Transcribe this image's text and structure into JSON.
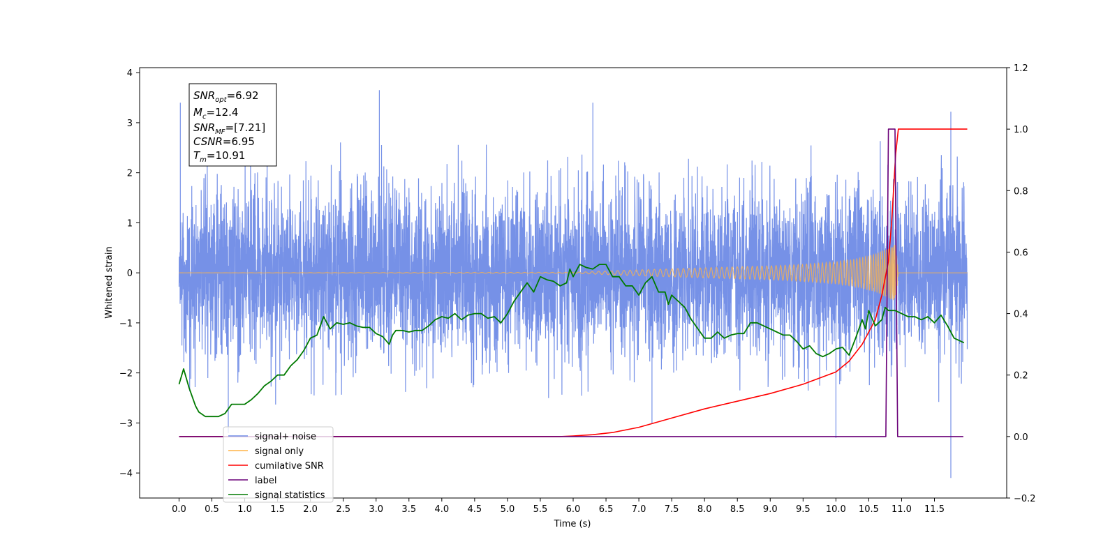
{
  "chart_data": {
    "type": "line",
    "xlabel": "Time (s)",
    "ylabel": "Whitened strain",
    "xlim": [
      -0.6,
      12.6
    ],
    "ylim": [
      -4.5,
      4.1
    ],
    "y2lim": [
      -0.2,
      1.2
    ],
    "x_ticks": [
      "0.0",
      "0.5",
      "1.0",
      "1.5",
      "2.0",
      "2.5",
      "3.0",
      "3.5",
      "4.0",
      "4.5",
      "5.0",
      "5.5",
      "6.0",
      "6.5",
      "7.0",
      "7.5",
      "8.0",
      "8.5",
      "9.0",
      "9.5",
      "10.0",
      "10.5",
      "11.0",
      "11.5"
    ],
    "y_ticks": [
      "4",
      "3",
      "2",
      "1",
      "0",
      "−1",
      "−2",
      "−3",
      "−4"
    ],
    "y2_ticks": [
      "1.2",
      "1.0",
      "0.8",
      "0.6",
      "0.4",
      "0.2",
      "0.0",
      "−0.2"
    ],
    "info_box": {
      "snr_opt": "=6.92",
      "mc": "=12.4",
      "snr_mf": "=[7.21]",
      "csnr": "=6.95",
      "tm": "=10.91"
    },
    "legend": {
      "placement": "lower-left",
      "entries": [
        {
          "label": "signal+ noise",
          "color": "#6F8BE6"
        },
        {
          "label": "signal only",
          "color": "#FFB347"
        },
        {
          "label": "cumilative SNR",
          "color": "#FF0000"
        },
        {
          "label": "label",
          "color": "#6A0078"
        },
        {
          "label": "signal statistics",
          "color": "#007A00"
        }
      ]
    },
    "series": [
      {
        "name": "signal+ noise",
        "axis": "left",
        "color": "#6F8BE6",
        "t_range": [
          0,
          12
        ],
        "envelope_pos_typical": 1.9,
        "envelope_neg_typical": -2.4,
        "notable_peaks": [
          [
            0.02,
            3.4
          ],
          [
            3.05,
            3.65
          ],
          [
            6.3,
            3.4
          ],
          [
            11.75,
            3.22
          ],
          [
            11.75,
            -4.1
          ],
          [
            10.0,
            -3.3
          ],
          [
            7.2,
            -3.0
          ],
          [
            0.75,
            -3.2
          ]
        ]
      },
      {
        "name": "signal only",
        "axis": "left",
        "color": "#FFB347",
        "note": "chirp",
        "x": [
          0,
          6.0,
          7.0,
          8.0,
          9.0,
          9.5,
          10.0,
          10.3,
          10.6,
          10.8,
          10.91,
          10.95
        ],
        "amplitude": [
          0.0,
          0.01,
          0.06,
          0.1,
          0.14,
          0.17,
          0.22,
          0.28,
          0.38,
          0.5,
          0.58,
          0.0
        ]
      },
      {
        "name": "cumilative SNR",
        "axis": "right",
        "color": "#FF0000",
        "x": [
          0,
          5.8,
          6.0,
          6.3,
          6.6,
          7.0,
          7.5,
          8.0,
          8.5,
          9.0,
          9.5,
          10.0,
          10.2,
          10.4,
          10.6,
          10.7,
          10.8,
          10.85,
          10.91,
          10.95,
          12.0
        ],
        "y": [
          0.0,
          0.0,
          0.002,
          0.006,
          0.013,
          0.03,
          0.06,
          0.09,
          0.115,
          0.14,
          0.17,
          0.21,
          0.245,
          0.3,
          0.38,
          0.46,
          0.57,
          0.7,
          0.92,
          1.0,
          1.0
        ]
      },
      {
        "name": "label",
        "axis": "right",
        "color": "#6A0078",
        "x": [
          0,
          10.76,
          10.8,
          10.9,
          10.94,
          11.94
        ],
        "y": [
          0,
          0,
          1,
          1,
          0,
          0
        ]
      },
      {
        "name": "signal statistics",
        "axis": "right",
        "color": "#007A00",
        "x": [
          0.0,
          0.07,
          0.15,
          0.25,
          0.3,
          0.4,
          0.5,
          0.6,
          0.7,
          0.8,
          0.9,
          1.0,
          1.1,
          1.2,
          1.3,
          1.4,
          1.5,
          1.6,
          1.7,
          1.8,
          1.9,
          2.0,
          2.1,
          2.2,
          2.3,
          2.4,
          2.5,
          2.6,
          2.7,
          2.8,
          2.9,
          3.0,
          3.1,
          3.2,
          3.25,
          3.3,
          3.4,
          3.5,
          3.6,
          3.7,
          3.8,
          3.9,
          4.0,
          4.1,
          4.2,
          4.3,
          4.4,
          4.5,
          4.6,
          4.7,
          4.8,
          4.9,
          5.0,
          5.1,
          5.2,
          5.3,
          5.4,
          5.5,
          5.6,
          5.7,
          5.8,
          5.9,
          5.95,
          6.0,
          6.1,
          6.2,
          6.3,
          6.4,
          6.5,
          6.6,
          6.7,
          6.8,
          6.9,
          7.0,
          7.1,
          7.2,
          7.3,
          7.4,
          7.45,
          7.5,
          7.6,
          7.7,
          7.8,
          7.9,
          8.0,
          8.1,
          8.2,
          8.3,
          8.4,
          8.5,
          8.6,
          8.7,
          8.8,
          8.9,
          9.0,
          9.1,
          9.2,
          9.3,
          9.4,
          9.5,
          9.6,
          9.7,
          9.8,
          9.9,
          10.0,
          10.1,
          10.2,
          10.3,
          10.4,
          10.45,
          10.5,
          10.6,
          10.7,
          10.75,
          10.8,
          10.9,
          11.0,
          11.1,
          11.2,
          11.3,
          11.4,
          11.5,
          11.6,
          11.7,
          11.8,
          11.9,
          11.95
        ],
        "y": [
          0.17,
          0.22,
          0.16,
          0.1,
          0.08,
          0.065,
          0.065,
          0.065,
          0.075,
          0.105,
          0.105,
          0.105,
          0.12,
          0.14,
          0.165,
          0.18,
          0.2,
          0.2,
          0.23,
          0.25,
          0.28,
          0.32,
          0.33,
          0.39,
          0.35,
          0.37,
          0.365,
          0.37,
          0.36,
          0.355,
          0.355,
          0.335,
          0.325,
          0.3,
          0.33,
          0.345,
          0.345,
          0.34,
          0.345,
          0.345,
          0.36,
          0.38,
          0.39,
          0.385,
          0.4,
          0.38,
          0.395,
          0.4,
          0.4,
          0.385,
          0.39,
          0.37,
          0.4,
          0.44,
          0.47,
          0.5,
          0.47,
          0.52,
          0.51,
          0.505,
          0.49,
          0.5,
          0.545,
          0.52,
          0.56,
          0.55,
          0.545,
          0.56,
          0.56,
          0.52,
          0.52,
          0.49,
          0.49,
          0.46,
          0.5,
          0.52,
          0.47,
          0.47,
          0.43,
          0.46,
          0.44,
          0.42,
          0.38,
          0.35,
          0.32,
          0.32,
          0.34,
          0.32,
          0.33,
          0.335,
          0.335,
          0.37,
          0.37,
          0.36,
          0.35,
          0.34,
          0.33,
          0.33,
          0.31,
          0.285,
          0.295,
          0.27,
          0.26,
          0.27,
          0.285,
          0.29,
          0.265,
          0.32,
          0.38,
          0.35,
          0.41,
          0.36,
          0.38,
          0.42,
          0.41,
          0.41,
          0.4,
          0.39,
          0.39,
          0.38,
          0.39,
          0.37,
          0.395,
          0.36,
          0.32,
          0.31,
          0.305
        ]
      }
    ]
  }
}
